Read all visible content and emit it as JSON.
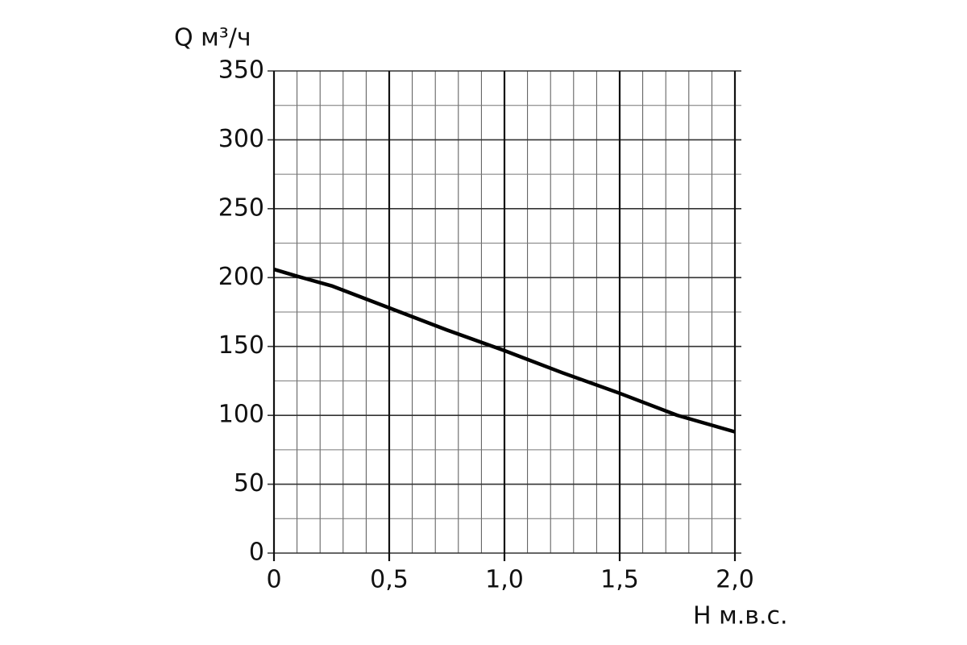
{
  "chart_data": {
    "type": "line",
    "y_label": "Q м³/ч",
    "x_label": "H м.в.с.",
    "x": [
      0,
      0.1,
      0.25,
      0.5,
      0.75,
      1.0,
      1.25,
      1.5,
      1.75,
      2.0
    ],
    "series": [
      {
        "color": "#000000",
        "values": [
          206,
          201,
          194,
          178,
          162,
          147,
          131,
          116,
          100,
          88
        ]
      }
    ],
    "xlim": [
      0,
      2.0
    ],
    "ylim": [
      0,
      350
    ],
    "xticks": [
      0,
      {
        "value": 0.5,
        "label": "0,5"
      },
      {
        "value": 1.0,
        "label": "1,0"
      },
      {
        "value": 1.5,
        "label": "1,5"
      },
      {
        "value": 2.0,
        "label": "2,0"
      }
    ],
    "yticks": [
      0,
      50,
      100,
      150,
      200,
      250,
      300,
      350
    ],
    "xminorticks": [
      0.1,
      0.2,
      0.3,
      0.4,
      0.6,
      0.7,
      0.8,
      0.9,
      1.1,
      1.2,
      1.3,
      1.4,
      1.6,
      1.7,
      1.8,
      1.9
    ],
    "yminorticks": [
      25,
      75,
      125,
      175,
      225,
      275,
      325
    ],
    "grid": true
  }
}
